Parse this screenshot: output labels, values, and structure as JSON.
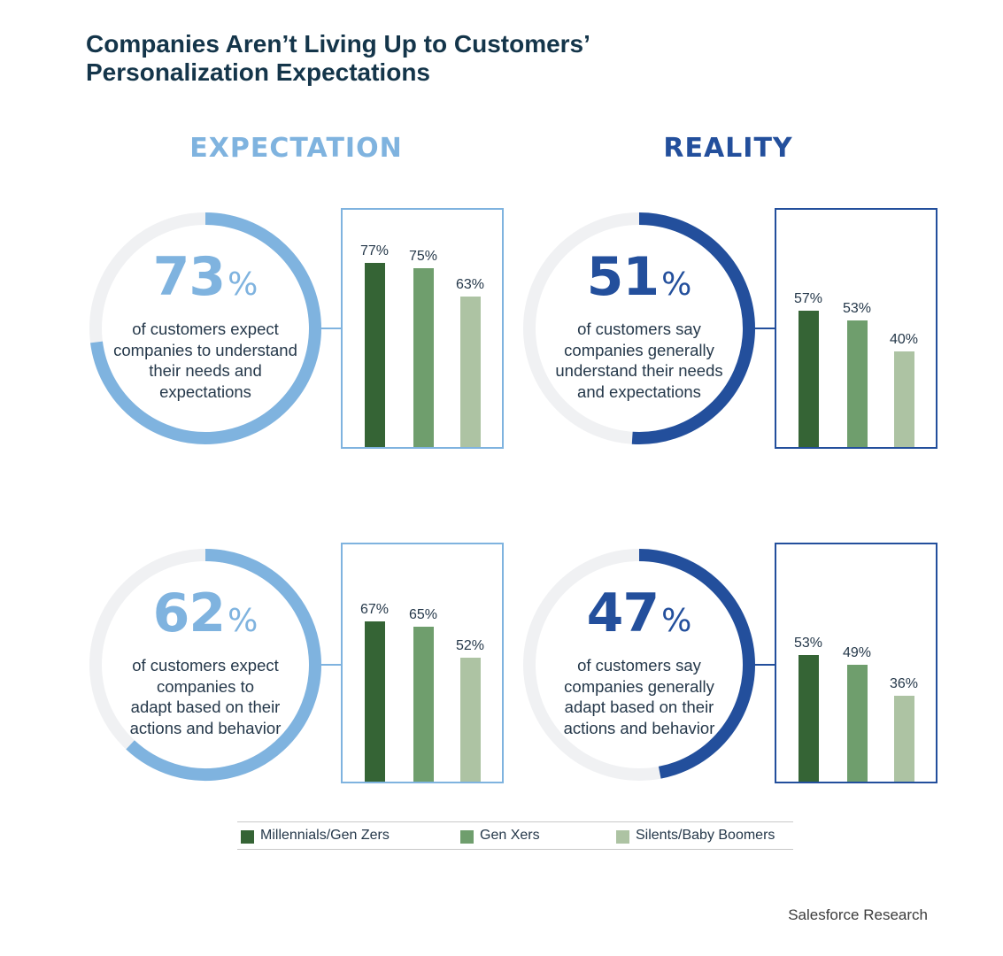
{
  "title": {
    "line1": "Companies Aren’t Living Up to Customers’",
    "line2": "Personalization Expectations"
  },
  "headings": {
    "expectation": "EXPECTATION",
    "reality": "REALITY"
  },
  "panels": [
    {
      "big_number": "73",
      "percent_sign": "%",
      "description": [
        "of customers expect",
        "companies to understand",
        "their needs and",
        "expectations"
      ],
      "bar_labels": [
        "77%",
        "75%",
        "63%"
      ]
    },
    {
      "big_number": "51",
      "percent_sign": "%",
      "description": [
        "of customers say",
        "companies generally",
        "understand their needs",
        "and expectations"
      ],
      "bar_labels": [
        "57%",
        "53%",
        "40%"
      ]
    },
    {
      "big_number": "62",
      "percent_sign": "%",
      "description": [
        "of customers expect",
        "companies to",
        "adapt based on their",
        "actions and behavior"
      ],
      "bar_labels": [
        "67%",
        "65%",
        "52%"
      ]
    },
    {
      "big_number": "47",
      "percent_sign": "%",
      "description": [
        "of customers say",
        "companies generally",
        "adapt based on their",
        "actions and behavior"
      ],
      "bar_labels": [
        "53%",
        "49%",
        "36%"
      ]
    }
  ],
  "legend": [
    "Millennials/Gen Zers",
    "Gen Xers",
    "Silents/Baby Boomers"
  ],
  "source": "Salesforce Research",
  "colors": {
    "expectation": "#7fb3df",
    "reality": "#234f9c",
    "ring_track": "#f0f1f3",
    "millennials": "#356435",
    "genx": "#6f9e6d",
    "boomers": "#adc3a3"
  },
  "chart_data": [
    {
      "type": "bar",
      "title": "Expectation: customers expect companies to understand their needs and expectations",
      "overall_value": 73,
      "categories": [
        "Millennials/Gen Zers",
        "Gen Xers",
        "Silents/Baby Boomers"
      ],
      "values": [
        77,
        75,
        63
      ],
      "ylim": [
        0,
        100
      ]
    },
    {
      "type": "bar",
      "title": "Reality: customers say companies generally understand their needs and expectations",
      "overall_value": 51,
      "categories": [
        "Millennials/Gen Zers",
        "Gen Xers",
        "Silents/Baby Boomers"
      ],
      "values": [
        57,
        53,
        40
      ],
      "ylim": [
        0,
        100
      ]
    },
    {
      "type": "bar",
      "title": "Expectation: customers expect companies to adapt based on their actions and behavior",
      "overall_value": 62,
      "categories": [
        "Millennials/Gen Zers",
        "Gen Xers",
        "Silents/Baby Boomers"
      ],
      "values": [
        67,
        65,
        52
      ],
      "ylim": [
        0,
        100
      ]
    },
    {
      "type": "bar",
      "title": "Reality: customers say companies generally adapt based on their actions and behavior",
      "overall_value": 47,
      "categories": [
        "Millennials/Gen Zers",
        "Gen Xers",
        "Silents/Baby Boomers"
      ],
      "values": [
        53,
        49,
        36
      ],
      "ylim": [
        0,
        100
      ]
    }
  ]
}
